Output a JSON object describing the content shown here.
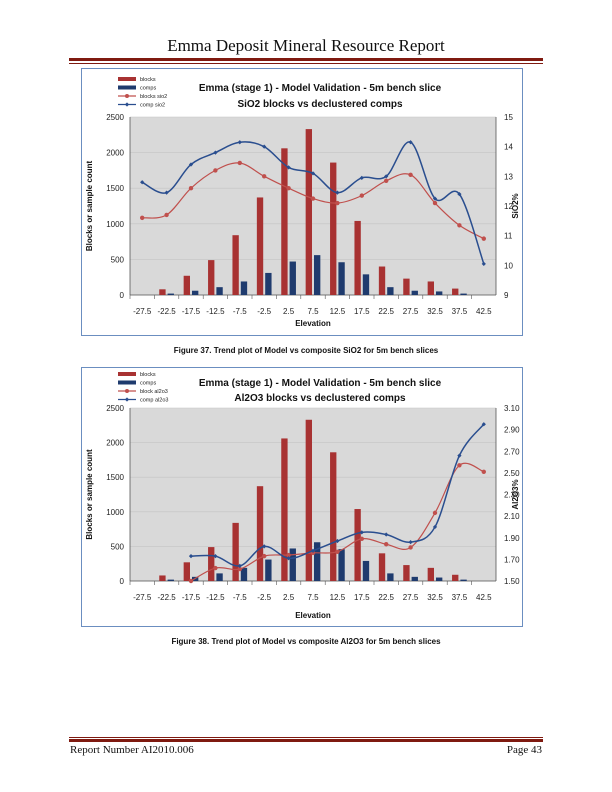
{
  "header": {
    "title": "Emma Deposit Mineral Resource Report"
  },
  "footer": {
    "left": "Report Number AI2010.006",
    "right": "Page 43"
  },
  "colors": {
    "blocks": "#a83232",
    "comps": "#1f3b6e",
    "blocks_line": "#c0504d",
    "comps_line": "#2a4e8f",
    "plot_bg": "#d9d9d9",
    "rule": "#7f1a10"
  },
  "captions": {
    "fig37": "Figure 37. Trend plot of Model vs composite SiO2 for 5m bench slices",
    "fig38": "Figure 38. Trend plot of Model vs composite Al2O3 for 5m bench slices"
  },
  "chart_data": [
    {
      "type": "bar",
      "title": "Emma (stage 1) - Model Validation - 5m bench slice",
      "subtitle": "SiO2 blocks vs  declustered comps",
      "xlabel": "Elevation",
      "ylabel": "Blocks or sample count",
      "y2label": "SiO2%",
      "categories": [
        "-27.5",
        "-22.5",
        "-17.5",
        "-12.5",
        "-7.5",
        "-2.5",
        "2.5",
        "7.5",
        "12.5",
        "17.5",
        "22.5",
        "27.5",
        "32.5",
        "37.5",
        "42.5"
      ],
      "ylim": [
        0,
        2500
      ],
      "yticks": [
        "0",
        "500",
        "1000",
        "1500",
        "2000",
        "2500"
      ],
      "y2lim": [
        9,
        15
      ],
      "y2ticks": [
        "9",
        "10",
        "11",
        "12",
        "13",
        "14",
        "15"
      ],
      "legend": [
        "blocks",
        "comps",
        "blocks sio2",
        "comp sio2"
      ],
      "legend_position": "top-left",
      "series": [
        {
          "name": "blocks",
          "kind": "bar",
          "values": [
            0,
            80,
            270,
            490,
            840,
            1370,
            2060,
            2330,
            1860,
            1040,
            400,
            230,
            190,
            90,
            0
          ]
        },
        {
          "name": "comps",
          "kind": "bar",
          "values": [
            0,
            20,
            60,
            110,
            190,
            310,
            470,
            560,
            460,
            290,
            110,
            60,
            50,
            20,
            0
          ]
        },
        {
          "name": "blocks sio2",
          "kind": "line",
          "axis": "y2",
          "values": [
            11.6,
            11.7,
            12.6,
            13.2,
            13.45,
            13.0,
            12.6,
            12.25,
            12.1,
            12.35,
            12.85,
            13.05,
            12.1,
            11.35,
            10.9
          ]
        },
        {
          "name": "comp sio2",
          "kind": "line",
          "axis": "y2",
          "values": [
            12.8,
            12.45,
            13.4,
            13.8,
            14.15,
            14.0,
            13.3,
            13.1,
            12.45,
            12.95,
            13.0,
            14.15,
            12.25,
            12.4,
            10.05
          ]
        }
      ]
    },
    {
      "type": "bar",
      "title": "Emma (stage 1) - Model Validation - 5m bench slice",
      "subtitle": "Al2O3 blocks vs  declustered comps",
      "xlabel": "Elevation",
      "ylabel": "Blocks or sample count",
      "y2label": "Al2O3%",
      "categories": [
        "-27.5",
        "-22.5",
        "-17.5",
        "-12.5",
        "-7.5",
        "-2.5",
        "2.5",
        "7.5",
        "12.5",
        "17.5",
        "22.5",
        "27.5",
        "32.5",
        "37.5",
        "42.5"
      ],
      "ylim": [
        0,
        2500
      ],
      "yticks": [
        "0",
        "500",
        "1000",
        "1500",
        "2000",
        "2500"
      ],
      "y2lim": [
        1.5,
        3.1
      ],
      "y2ticks": [
        "1.50",
        "1.70",
        "1.90",
        "2.10",
        "2.30",
        "2.50",
        "2.70",
        "2.90",
        "3.10"
      ],
      "legend": [
        "blocks",
        "comps",
        "block al2o3",
        "comp al2o3"
      ],
      "legend_position": "top-left",
      "series": [
        {
          "name": "blocks",
          "kind": "bar",
          "values": [
            0,
            80,
            270,
            490,
            840,
            1370,
            2060,
            2330,
            1860,
            1040,
            400,
            230,
            190,
            90,
            0
          ]
        },
        {
          "name": "comps",
          "kind": "bar",
          "values": [
            0,
            20,
            60,
            110,
            190,
            310,
            470,
            560,
            460,
            290,
            110,
            60,
            50,
            20,
            0
          ]
        },
        {
          "name": "block al2o3",
          "kind": "line",
          "axis": "y2",
          "values": [
            null,
            null,
            1.5,
            1.62,
            1.61,
            1.73,
            1.74,
            1.76,
            1.77,
            1.89,
            1.84,
            1.81,
            2.13,
            2.57,
            2.51
          ]
        },
        {
          "name": "comp al2o3",
          "kind": "line",
          "axis": "y2",
          "values": [
            null,
            null,
            1.73,
            1.73,
            1.64,
            1.82,
            1.71,
            1.78,
            1.87,
            1.95,
            1.93,
            1.86,
            2.0,
            2.66,
            2.95
          ]
        }
      ]
    }
  ]
}
